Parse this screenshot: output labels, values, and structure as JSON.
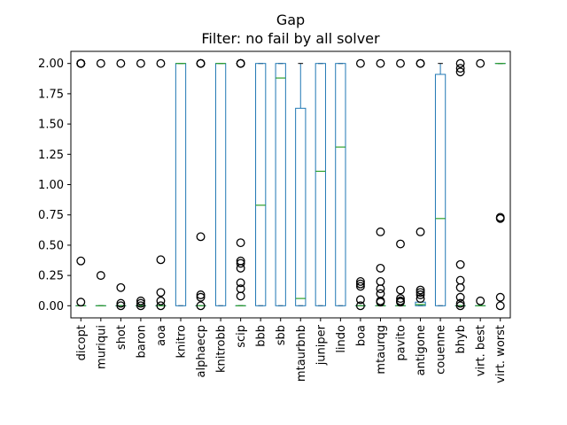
{
  "chart_data": {
    "type": "box",
    "title": "Gap",
    "subtitle": "Filter: no fail by all solver",
    "xlabel": "",
    "ylabel": "",
    "ylim": [
      -0.1,
      2.1
    ],
    "yticks": [
      "0.00",
      "0.25",
      "0.50",
      "0.75",
      "1.00",
      "1.25",
      "1.50",
      "1.75",
      "2.00"
    ],
    "grid": false,
    "categories": [
      "dicopt",
      "muriqui",
      "shot",
      "baron",
      "aoa",
      "knitro",
      "alphaecp",
      "knitrobb",
      "scip",
      "bbb",
      "sbb",
      "mtaurbnb",
      "juniper",
      "lindo",
      "boa",
      "mtaurqg",
      "pavito",
      "antigone",
      "couenne",
      "bhyb",
      "virt. best",
      "virt. worst"
    ],
    "boxes": [
      {
        "q1": 0,
        "median": 0,
        "q3": 0,
        "whislo": 0,
        "whishi": 0,
        "fliers": [
          2.0,
          2.0,
          2.0,
          2.0,
          0.37,
          0.03
        ]
      },
      {
        "q1": 0,
        "median": 0,
        "q3": 0,
        "whislo": 0,
        "whishi": 0,
        "fliers": [
          2.0,
          0.25
        ]
      },
      {
        "q1": 0,
        "median": 0,
        "q3": 0,
        "whislo": 0,
        "whishi": 0,
        "fliers": [
          2.0,
          0.15,
          0.02,
          0.0
        ]
      },
      {
        "q1": 0,
        "median": 0,
        "q3": 0,
        "whislo": 0,
        "whishi": 0,
        "fliers": [
          2.0,
          0.04,
          0.02,
          0.0
        ]
      },
      {
        "q1": 0,
        "median": 0,
        "q3": 0,
        "whislo": 0,
        "whishi": 0,
        "fliers": [
          2.0,
          0.38,
          0.11,
          0.04,
          0.0
        ]
      },
      {
        "q1": 0,
        "median": 2.0,
        "q3": 2.0,
        "whislo": 0,
        "whishi": 2.0,
        "fliers": []
      },
      {
        "q1": 0,
        "median": 0,
        "q3": 0,
        "whislo": 0,
        "whishi": 0,
        "fliers": [
          2.0,
          2.0,
          2.0,
          0.57,
          0.09,
          0.07,
          0.0
        ]
      },
      {
        "q1": 0,
        "median": 2.0,
        "q3": 2.0,
        "whislo": 0,
        "whishi": 2.0,
        "fliers": []
      },
      {
        "q1": 0,
        "median": 0,
        "q3": 0,
        "whislo": 0,
        "whishi": 0,
        "fliers": [
          2.0,
          2.0,
          2.0,
          0.52,
          0.37,
          0.35,
          0.31,
          0.19,
          0.14,
          0.08
        ]
      },
      {
        "q1": 0,
        "median": 0.83,
        "q3": 2.0,
        "whislo": 0,
        "whishi": 2.0,
        "fliers": []
      },
      {
        "q1": 0,
        "median": 1.88,
        "q3": 2.0,
        "whislo": 0,
        "whishi": 2.0,
        "fliers": []
      },
      {
        "q1": 0,
        "median": 0.06,
        "q3": 1.63,
        "whislo": 0,
        "whishi": 2.0,
        "fliers": []
      },
      {
        "q1": 0,
        "median": 1.11,
        "q3": 2.0,
        "whislo": 0,
        "whishi": 2.0,
        "fliers": []
      },
      {
        "q1": 0,
        "median": 1.31,
        "q3": 2.0,
        "whislo": 0,
        "whishi": 2.0,
        "fliers": []
      },
      {
        "q1": 0,
        "median": 0,
        "q3": 0,
        "whislo": 0,
        "whishi": 0,
        "fliers": [
          2.0,
          0.2,
          0.18,
          0.16,
          0.05,
          0.0
        ]
      },
      {
        "q1": 0,
        "median": 0,
        "q3": 0,
        "whislo": 0,
        "whishi": 0,
        "fliers": [
          2.0,
          0.61,
          0.31,
          0.2,
          0.14,
          0.1,
          0.04,
          0.03
        ]
      },
      {
        "q1": 0,
        "median": 0,
        "q3": 0,
        "whislo": 0,
        "whishi": 0,
        "fliers": [
          2.0,
          0.51,
          0.13,
          0.06,
          0.04,
          0.03
        ]
      },
      {
        "q1": 0,
        "median": 0.01,
        "q3": 0.03,
        "whislo": 0,
        "whishi": 0.03,
        "fliers": [
          2.0,
          2.0,
          0.61,
          0.13,
          0.11,
          0.09,
          0.06
        ]
      },
      {
        "q1": 0,
        "median": 0.72,
        "q3": 1.91,
        "whislo": 0,
        "whishi": 2.0,
        "fliers": []
      },
      {
        "q1": 0,
        "median": 0,
        "q3": 0,
        "whislo": 0,
        "whishi": 0,
        "fliers": [
          2.0,
          1.96,
          1.93,
          0.34,
          0.21,
          0.15,
          0.07,
          0.02,
          0.0
        ]
      },
      {
        "q1": 0,
        "median": 0,
        "q3": 0,
        "whislo": 0,
        "whishi": 0,
        "fliers": [
          2.0,
          0.04
        ]
      },
      {
        "q1": 2.0,
        "median": 2.0,
        "q3": 2.0,
        "whislo": 2.0,
        "whishi": 2.0,
        "fliers": [
          0.73,
          0.72,
          0.07,
          0.0
        ]
      }
    ]
  }
}
